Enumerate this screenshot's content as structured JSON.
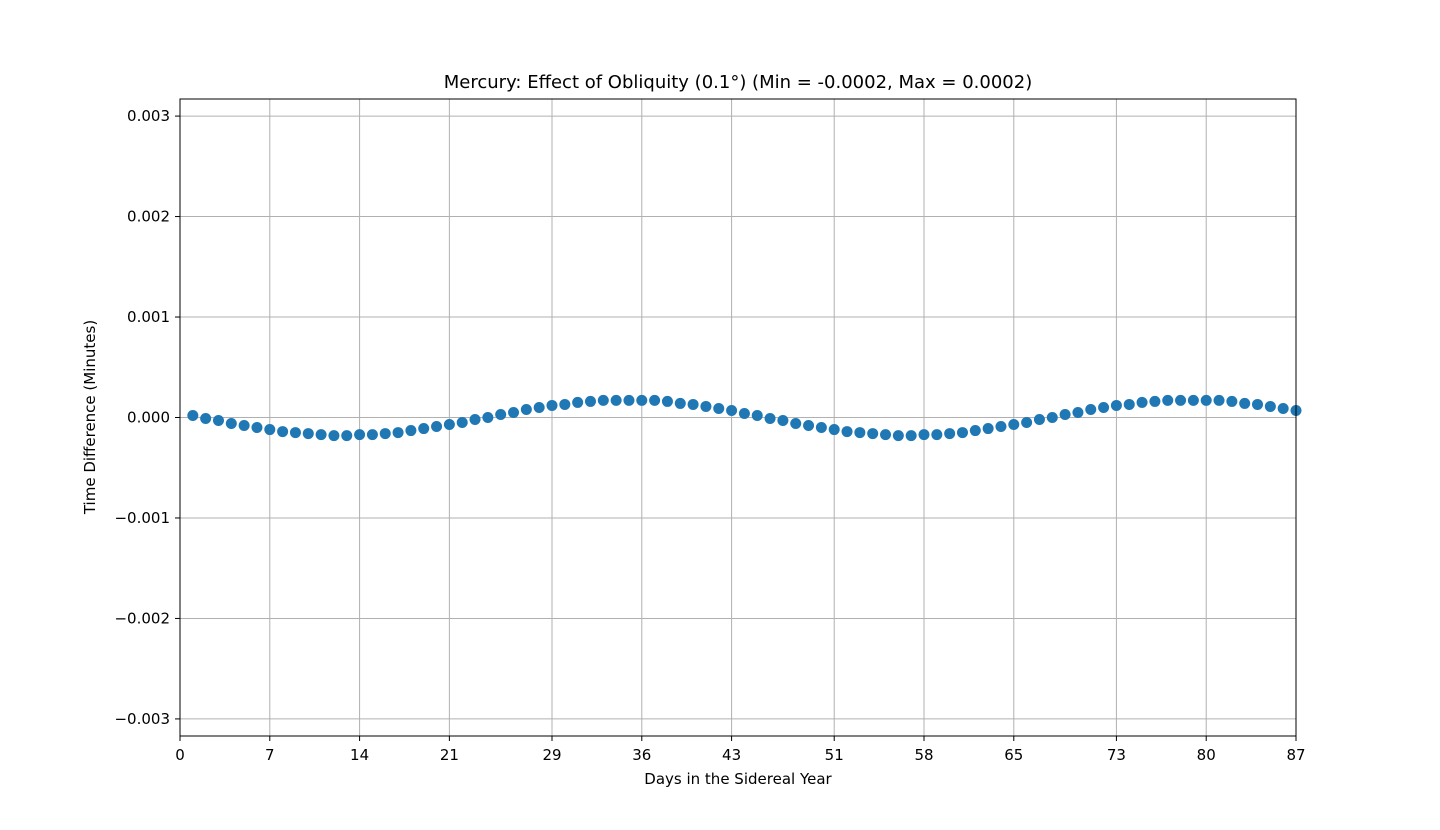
{
  "chart_data": {
    "type": "scatter",
    "title": "Mercury: Effect of Obliquity (0.1°) (Min = -0.0002, Max = 0.0002)",
    "xlabel": "Days in the Sidereal Year",
    "ylabel": "Time Difference (Minutes)",
    "xlim": [
      0,
      87
    ],
    "ylim": [
      -0.00317,
      0.00317
    ],
    "x_ticks": [
      0,
      7,
      14,
      21,
      29,
      36,
      43,
      51,
      58,
      65,
      73,
      80,
      87
    ],
    "x_tick_labels": [
      "0",
      "7",
      "14",
      "21",
      "29",
      "36",
      "43",
      "51",
      "58",
      "65",
      "73",
      "80",
      "87"
    ],
    "y_ticks": [
      -0.003,
      -0.002,
      -0.001,
      0.0,
      0.001,
      0.002,
      0.003
    ],
    "y_tick_labels": [
      "−0.003",
      "−0.002",
      "−0.001",
      "0.000",
      "0.001",
      "0.002",
      "0.003"
    ],
    "grid": true,
    "marker_color": "#1f77b4",
    "series": [
      {
        "x": [
          1,
          2,
          3,
          4,
          5,
          6,
          7,
          8,
          9,
          10,
          11,
          12,
          13,
          14,
          15,
          16,
          17,
          18,
          19,
          20,
          21,
          22,
          23,
          24,
          25,
          26,
          27,
          28,
          29,
          30,
          31,
          32,
          33,
          34,
          35,
          36,
          37,
          38,
          39,
          40,
          41,
          42,
          43,
          44,
          45,
          46,
          47,
          48,
          49,
          50,
          51,
          52,
          53,
          54,
          55,
          56,
          57,
          58,
          59,
          60,
          61,
          62,
          63,
          64,
          65,
          66,
          67,
          68,
          69,
          70,
          71,
          72,
          73,
          74,
          75,
          76,
          77,
          78,
          79,
          80,
          81,
          82,
          83,
          84,
          85,
          86,
          87
        ],
        "y": [
          2e-05,
          -1e-05,
          -3e-05,
          -6e-05,
          -8e-05,
          -0.0001,
          -0.00012,
          -0.00014,
          -0.00015,
          -0.00016,
          -0.00017,
          -0.00018,
          -0.00018,
          -0.00017,
          -0.00017,
          -0.00016,
          -0.00015,
          -0.00013,
          -0.00011,
          -9e-05,
          -7e-05,
          -5e-05,
          -2e-05,
          0.0,
          3e-05,
          5e-05,
          8e-05,
          0.0001,
          0.00012,
          0.00013,
          0.00015,
          0.00016,
          0.00017,
          0.00017,
          0.00017,
          0.00017,
          0.00017,
          0.00016,
          0.00014,
          0.00013,
          0.00011,
          9e-05,
          7e-05,
          4e-05,
          2e-05,
          -1e-05,
          -3e-05,
          -6e-05,
          -8e-05,
          -0.0001,
          -0.00012,
          -0.00014,
          -0.00015,
          -0.00016,
          -0.00017,
          -0.00018,
          -0.00018,
          -0.00017,
          -0.00017,
          -0.00016,
          -0.00015,
          -0.00013,
          -0.00011,
          -9e-05,
          -7e-05,
          -5e-05,
          -2e-05,
          0.0,
          3e-05,
          5e-05,
          8e-05,
          0.0001,
          0.00012,
          0.00013,
          0.00015,
          0.00016,
          0.00017,
          0.00017,
          0.00017,
          0.00017,
          0.00017,
          0.00016,
          0.00014,
          0.00013,
          0.00011,
          9e-05,
          7e-05
        ]
      }
    ]
  }
}
